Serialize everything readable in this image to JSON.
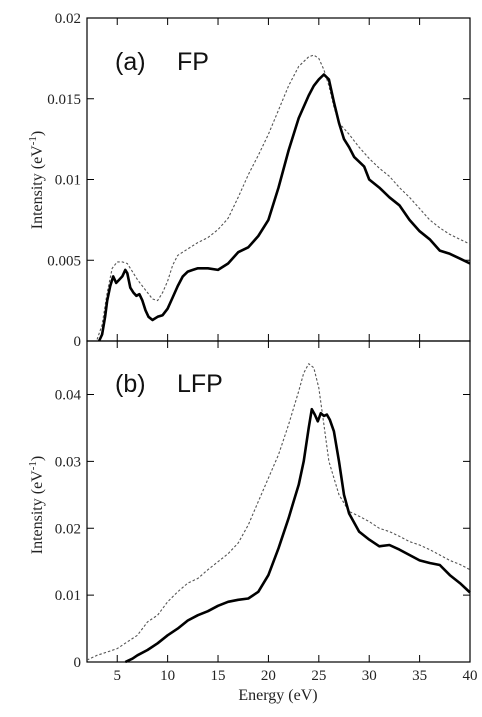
{
  "chart_data": [
    {
      "type": "line",
      "panel_label": "(a)",
      "panel_name": "FP",
      "ylabel": "Intensity (eV",
      "ylabel_sup": "-1",
      "ylabel_close": ")",
      "xlim": [
        2,
        40
      ],
      "ylim": [
        0,
        0.02
      ],
      "yticks": [
        0,
        0.005,
        0.01,
        0.015,
        0.02
      ],
      "ytick_labels": [
        "0",
        "0.005",
        "0.01",
        "0.015",
        "0.02"
      ],
      "series": [
        {
          "style": "solid",
          "color": "#000000",
          "x": [
            3.2,
            3.5,
            3.8,
            4.0,
            4.3,
            4.6,
            4.9,
            5.2,
            5.5,
            5.8,
            6.0,
            6.3,
            6.6,
            6.9,
            7.2,
            7.5,
            7.8,
            8.1,
            8.5,
            9.0,
            9.5,
            10.0,
            10.5,
            11.0,
            11.5,
            12.0,
            12.5,
            13.0,
            14.0,
            15.0,
            16.0,
            17.0,
            18.0,
            19.0,
            20.0,
            21.0,
            22.0,
            23.0,
            24.0,
            24.5,
            25.0,
            25.5,
            26.0,
            26.5,
            27.0,
            27.5,
            28.0,
            28.5,
            29.0,
            29.5,
            30.0,
            31.0,
            32.0,
            33.0,
            34.0,
            35.0,
            36.0,
            37.0,
            38.0,
            39.0,
            40.0
          ],
          "y": [
            0.0,
            0.0004,
            0.0015,
            0.0025,
            0.0034,
            0.004,
            0.0036,
            0.0038,
            0.004,
            0.0044,
            0.0042,
            0.0033,
            0.003,
            0.0028,
            0.0029,
            0.0025,
            0.0019,
            0.0015,
            0.0013,
            0.0015,
            0.0016,
            0.002,
            0.0027,
            0.0034,
            0.004,
            0.0043,
            0.0044,
            0.0045,
            0.0045,
            0.0044,
            0.0048,
            0.0055,
            0.0058,
            0.0065,
            0.0075,
            0.0095,
            0.0118,
            0.0138,
            0.0152,
            0.0158,
            0.0162,
            0.0165,
            0.0162,
            0.0148,
            0.0135,
            0.0125,
            0.012,
            0.0114,
            0.0111,
            0.0108,
            0.01,
            0.0095,
            0.0089,
            0.0084,
            0.0075,
            0.0068,
            0.0063,
            0.0056,
            0.0054,
            0.0051,
            0.0048
          ]
        },
        {
          "style": "dotted",
          "color": "#555555",
          "x": [
            3.0,
            3.5,
            4.0,
            4.5,
            5.0,
            5.5,
            6.0,
            6.5,
            7.0,
            7.5,
            8.0,
            8.5,
            9.0,
            9.5,
            10.0,
            10.5,
            11.0,
            12.0,
            13.0,
            14.0,
            15.0,
            16.0,
            17.0,
            18.0,
            19.0,
            20.0,
            21.0,
            22.0,
            23.0,
            24.0,
            24.5,
            25.0,
            25.5,
            26.0,
            26.5,
            27.0,
            28.0,
            29.0,
            30.0,
            31.0,
            32.0,
            33.0,
            34.0,
            35.0,
            36.0,
            37.0,
            38.0,
            39.0,
            40.0
          ],
          "y": [
            0.0001,
            0.001,
            0.003,
            0.0045,
            0.0049,
            0.0049,
            0.0048,
            0.0043,
            0.0038,
            0.0034,
            0.003,
            0.0026,
            0.0025,
            0.003,
            0.0037,
            0.0047,
            0.0053,
            0.0057,
            0.0061,
            0.0064,
            0.0069,
            0.0076,
            0.0089,
            0.0103,
            0.0115,
            0.0128,
            0.0143,
            0.0158,
            0.017,
            0.0176,
            0.0177,
            0.0175,
            0.0168,
            0.0158,
            0.0145,
            0.0135,
            0.0128,
            0.012,
            0.0113,
            0.0107,
            0.0102,
            0.0095,
            0.0089,
            0.0082,
            0.0075,
            0.007,
            0.0066,
            0.0063,
            0.006
          ]
        }
      ]
    },
    {
      "type": "line",
      "panel_label": "(b)",
      "panel_name": "LFP",
      "ylabel": "Intensity (eV",
      "ylabel_sup": "-1",
      "ylabel_close": ")",
      "xlabel": "Energy (eV)",
      "xlim": [
        2,
        40
      ],
      "ylim": [
        0,
        0.048
      ],
      "xticks": [
        5,
        10,
        15,
        20,
        25,
        30,
        35,
        40
      ],
      "xtick_labels": [
        "5",
        "10",
        "15",
        "20",
        "25",
        "30",
        "35",
        "40"
      ],
      "yticks": [
        0,
        0.01,
        0.02,
        0.03,
        0.04
      ],
      "ytick_labels": [
        "0",
        "0.01",
        "0.02",
        "0.03",
        "0.04"
      ],
      "series": [
        {
          "style": "solid",
          "color": "#000000",
          "x": [
            5.8,
            6.5,
            7.0,
            8.0,
            9.0,
            10.0,
            11.0,
            12.0,
            13.0,
            14.0,
            15.0,
            16.0,
            17.0,
            18.0,
            19.0,
            20.0,
            21.0,
            22.0,
            22.5,
            23.0,
            23.5,
            24.0,
            24.3,
            24.6,
            24.9,
            25.2,
            25.5,
            25.8,
            26.1,
            26.5,
            27.0,
            27.5,
            28.0,
            29.0,
            30.0,
            31.0,
            32.0,
            33.0,
            34.0,
            35.0,
            36.0,
            37.0,
            38.0,
            39.0,
            40.0
          ],
          "y": [
            0.0,
            0.0005,
            0.001,
            0.0018,
            0.0028,
            0.004,
            0.005,
            0.0062,
            0.007,
            0.0076,
            0.0084,
            0.009,
            0.0093,
            0.0095,
            0.0105,
            0.013,
            0.017,
            0.0215,
            0.024,
            0.0265,
            0.03,
            0.035,
            0.0378,
            0.037,
            0.036,
            0.0372,
            0.0368,
            0.037,
            0.0362,
            0.0345,
            0.03,
            0.025,
            0.0222,
            0.0195,
            0.0183,
            0.0173,
            0.0175,
            0.0168,
            0.016,
            0.0152,
            0.0148,
            0.0145,
            0.013,
            0.0118,
            0.0104
          ]
        },
        {
          "style": "dotted",
          "color": "#555555",
          "x": [
            2.0,
            3.0,
            4.0,
            5.0,
            6.0,
            7.0,
            8.0,
            9.0,
            10.0,
            11.0,
            12.0,
            13.0,
            14.0,
            15.0,
            16.0,
            17.0,
            18.0,
            19.0,
            20.0,
            21.0,
            22.0,
            23.0,
            23.5,
            24.0,
            24.5,
            25.0,
            25.5,
            26.0,
            27.0,
            28.0,
            29.0,
            30.0,
            31.0,
            32.0,
            33.0,
            34.0,
            35.0,
            36.0,
            37.0,
            38.0,
            39.0,
            40.0
          ],
          "y": [
            0.0003,
            0.001,
            0.0015,
            0.002,
            0.003,
            0.004,
            0.006,
            0.007,
            0.009,
            0.0105,
            0.0118,
            0.0125,
            0.0138,
            0.015,
            0.0162,
            0.0178,
            0.0205,
            0.024,
            0.0275,
            0.031,
            0.0355,
            0.0405,
            0.0432,
            0.0446,
            0.044,
            0.041,
            0.0355,
            0.03,
            0.025,
            0.0225,
            0.0218,
            0.021,
            0.02,
            0.0195,
            0.0188,
            0.018,
            0.0175,
            0.0168,
            0.016,
            0.0152,
            0.0146,
            0.0138
          ]
        }
      ]
    }
  ]
}
